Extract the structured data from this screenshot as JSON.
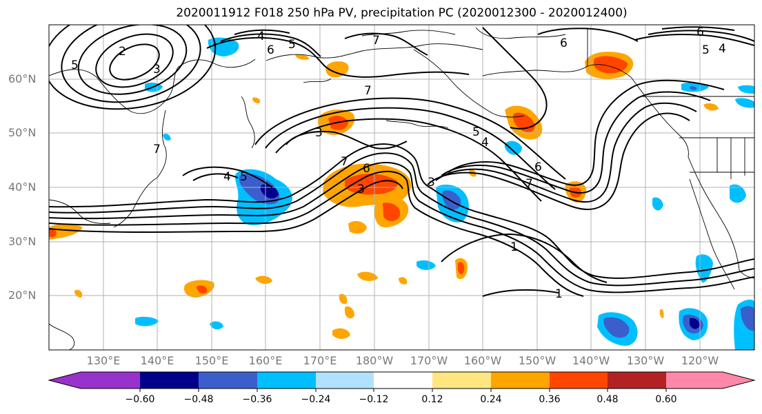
{
  "title": "2020011912 F018 250 hPa PV, precipitation PC (2020012300 - 2020012400)",
  "latitude_labels": [
    "60°N",
    "50°N",
    "40°N",
    "30°N",
    "20°N"
  ],
  "longitude_labels": [
    "130°E",
    "140°E",
    "150°E",
    "160°E",
    "170°E",
    "180°W",
    "170°W",
    "160°W",
    "150°W",
    "140°W",
    "130°W",
    "120°W"
  ],
  "contour_labels": [
    "5",
    "2",
    "3",
    "4",
    "6",
    "5",
    "7",
    "6",
    "7",
    "3",
    "5",
    "4",
    "7",
    "6",
    "3",
    "5",
    "4",
    "6",
    "7",
    "1",
    "1",
    "6",
    "5",
    "4",
    "3",
    "7"
  ],
  "colorbar": {
    "tick_labels": [
      "−0.60",
      "−0.48",
      "−0.36",
      "−0.24",
      "−0.12",
      "0.12",
      "0.24",
      "0.36",
      "0.48",
      "0.60"
    ],
    "colors": [
      "#9932cc",
      "#00008b",
      "#3a5fcd",
      "#00bfff",
      "#b0e2ff",
      "#ffffff",
      "#ffe680",
      "#ffa500",
      "#ff4500",
      "#b22222",
      "#ff88aa"
    ]
  }
}
